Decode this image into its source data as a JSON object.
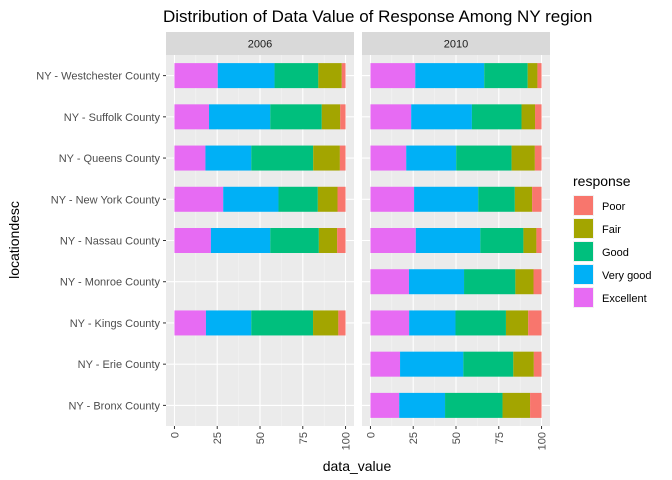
{
  "chart_data": {
    "type": "bar",
    "orientation": "horizontal",
    "stacked": true,
    "title": "Distribution of Data Value of Response Among NY region",
    "xlabel": "data_value",
    "ylabel": "locationdesc",
    "xlim": [
      0,
      100
    ],
    "x_ticks": [
      "0",
      "25",
      "50",
      "75",
      "100"
    ],
    "grid": true,
    "legend_position": "right",
    "legend_title": "response",
    "categories": [
      "NY - Westchester County",
      "NY - Suffolk County",
      "NY - Queens County",
      "NY - New York County",
      "NY - Nassau County",
      "NY - Monroe County",
      "NY - Kings County",
      "NY - Erie County",
      "NY - Bronx County"
    ],
    "stack_order": [
      "Excellent",
      "Very good",
      "Good",
      "Fair",
      "Poor"
    ],
    "legend": [
      {
        "name": "Poor",
        "color": "#F8766D"
      },
      {
        "name": "Fair",
        "color": "#A3A500"
      },
      {
        "name": "Good",
        "color": "#00BF7D"
      },
      {
        "name": "Very good",
        "color": "#00B0F6"
      },
      {
        "name": "Excellent",
        "color": "#E76BF3"
      }
    ],
    "panels": [
      {
        "facet": "2006",
        "series": [
          {
            "name": "Excellent",
            "values": [
              25.3,
              20.2,
              18.1,
              28.5,
              21.3,
              null,
              18.4,
              null,
              null
            ]
          },
          {
            "name": "Very good",
            "values": [
              33.2,
              35.8,
              26.8,
              32.3,
              34.7,
              null,
              26.5,
              null,
              null
            ]
          },
          {
            "name": "Good",
            "values": [
              25.6,
              30.1,
              36.2,
              23.0,
              28.4,
              null,
              36.1,
              null,
              null
            ]
          },
          {
            "name": "Fair",
            "values": [
              13.7,
              10.8,
              15.6,
              11.5,
              10.7,
              null,
              14.8,
              null,
              null
            ]
          },
          {
            "name": "Poor",
            "values": [
              2.2,
              3.1,
              3.3,
              4.7,
              4.9,
              null,
              4.2,
              null,
              null
            ]
          }
        ]
      },
      {
        "facet": "2010",
        "series": [
          {
            "name": "Excellent",
            "values": [
              26.2,
              23.8,
              20.9,
              25.5,
              26.5,
              22.5,
              22.6,
              17.3,
              16.8
            ]
          },
          {
            "name": "Very good",
            "values": [
              40.3,
              35.5,
              29.2,
              37.5,
              37.7,
              32.2,
              27.1,
              37.0,
              26.8
            ]
          },
          {
            "name": "Good",
            "values": [
              25.4,
              29.0,
              32.4,
              21.4,
              25.2,
              30.0,
              29.5,
              29.2,
              33.6
            ]
          },
          {
            "name": "Fair",
            "values": [
              5.7,
              7.9,
              13.6,
              10.1,
              7.6,
              10.6,
              13.0,
              12.0,
              16.1
            ]
          },
          {
            "name": "Poor",
            "values": [
              2.4,
              3.8,
              3.9,
              5.5,
              3.0,
              4.7,
              7.8,
              4.5,
              6.7
            ]
          }
        ]
      }
    ]
  }
}
